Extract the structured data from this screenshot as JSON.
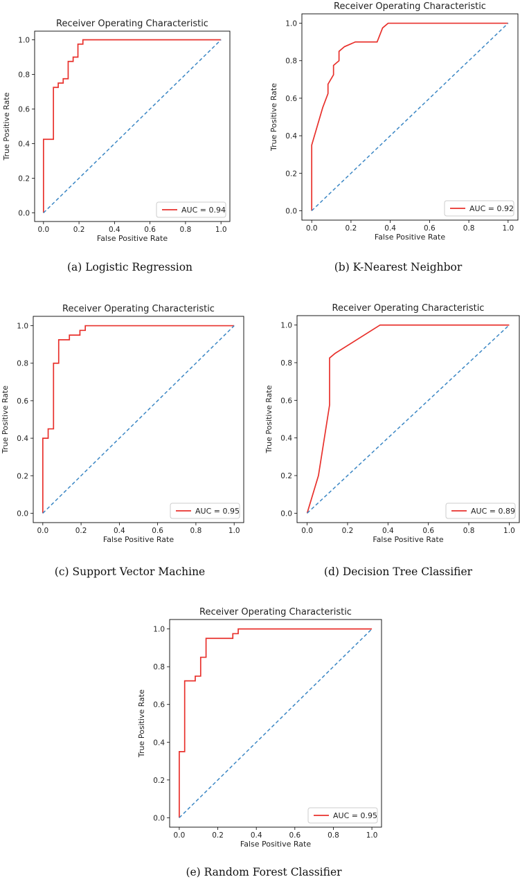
{
  "chart_data": [
    {
      "type": "line",
      "title": "Receiver Operating Characteristic",
      "xlabel": "False Positive Rate",
      "ylabel": "True Positive Rate",
      "xlim": [
        -0.05,
        1.05
      ],
      "ylim": [
        -0.05,
        1.05
      ],
      "xticks": [
        "0.0",
        "0.2",
        "0.4",
        "0.6",
        "0.8",
        "1.0"
      ],
      "yticks": [
        "0.0",
        "0.2",
        "0.4",
        "0.6",
        "0.8",
        "1.0"
      ],
      "legend_position": "lower-right",
      "series": [
        {
          "name": "AUC = 0.94",
          "color": "#e8302b",
          "style": "solid",
          "x": [
            0,
            0,
            0.056,
            0.056,
            0.083,
            0.083,
            0.111,
            0.111,
            0.139,
            0.139,
            0.167,
            0.167,
            0.194,
            0.194,
            0.222,
            0.222,
            1.0
          ],
          "y": [
            0,
            0.425,
            0.425,
            0.725,
            0.725,
            0.75,
            0.75,
            0.775,
            0.775,
            0.875,
            0.875,
            0.9,
            0.9,
            0.975,
            0.975,
            1.0,
            1.0
          ]
        },
        {
          "name": "",
          "color": "#3a86c4",
          "style": "dashed",
          "x": [
            0,
            1
          ],
          "y": [
            0,
            1
          ]
        }
      ],
      "caption": "(a) Logistic Regression"
    },
    {
      "type": "line",
      "title": "Receiver Operating Characteristic",
      "xlabel": "False Positive Rate",
      "ylabel": "True Positive Rate",
      "xlim": [
        -0.05,
        1.05
      ],
      "ylim": [
        -0.05,
        1.05
      ],
      "xticks": [
        "0.0",
        "0.2",
        "0.4",
        "0.6",
        "0.8",
        "1.0"
      ],
      "yticks": [
        "0.0",
        "0.2",
        "0.4",
        "0.6",
        "0.8",
        "1.0"
      ],
      "legend_position": "lower-right",
      "series": [
        {
          "name": "AUC = 0.92",
          "color": "#e8302b",
          "style": "solid",
          "x": [
            0,
            0,
            0.028,
            0.056,
            0.083,
            0.083,
            0.111,
            0.111,
            0.139,
            0.139,
            0.167,
            0.222,
            0.25,
            0.333,
            0.361,
            0.389,
            1.0
          ],
          "y": [
            0,
            0.35,
            0.45,
            0.55,
            0.625,
            0.675,
            0.725,
            0.775,
            0.8,
            0.85,
            0.875,
            0.9,
            0.9,
            0.9,
            0.975,
            1.0,
            1.0
          ]
        },
        {
          "name": "",
          "color": "#3a86c4",
          "style": "dashed",
          "x": [
            0,
            1
          ],
          "y": [
            0,
            1
          ]
        }
      ],
      "caption": "(b) K-Nearest Neighbor"
    },
    {
      "type": "line",
      "title": "Receiver Operating Characteristic",
      "xlabel": "False Positive Rate",
      "ylabel": "True Positive Rate",
      "xlim": [
        -0.05,
        1.05
      ],
      "ylim": [
        -0.05,
        1.05
      ],
      "xticks": [
        "0.0",
        "0.2",
        "0.4",
        "0.6",
        "0.8",
        "1.0"
      ],
      "yticks": [
        "0.0",
        "0.2",
        "0.4",
        "0.6",
        "0.8",
        "1.0"
      ],
      "legend_position": "lower-right",
      "series": [
        {
          "name": "AUC = 0.95",
          "color": "#e8302b",
          "style": "solid",
          "x": [
            0,
            0,
            0.028,
            0.028,
            0.056,
            0.056,
            0.083,
            0.083,
            0.139,
            0.139,
            0.194,
            0.194,
            0.222,
            0.222,
            1.0
          ],
          "y": [
            0,
            0.4,
            0.4,
            0.45,
            0.45,
            0.8,
            0.8,
            0.925,
            0.925,
            0.95,
            0.95,
            0.975,
            0.975,
            1.0,
            1.0
          ]
        },
        {
          "name": "",
          "color": "#3a86c4",
          "style": "dashed",
          "x": [
            0,
            1
          ],
          "y": [
            0,
            1
          ]
        }
      ],
      "caption": "(c) Support Vector Machine"
    },
    {
      "type": "line",
      "title": "Receiver Operating Characteristic",
      "xlabel": "False Positive Rate",
      "ylabel": "True Positive Rate",
      "xlim": [
        -0.05,
        1.05
      ],
      "ylim": [
        -0.05,
        1.05
      ],
      "xticks": [
        "0.0",
        "0.2",
        "0.4",
        "0.6",
        "0.8",
        "1.0"
      ],
      "yticks": [
        "0.0",
        "0.2",
        "0.4",
        "0.6",
        "0.8",
        "1.0"
      ],
      "legend_position": "lower-right",
      "series": [
        {
          "name": "AUC = 0.89",
          "color": "#e8302b",
          "style": "solid",
          "x": [
            0,
            0.056,
            0.111,
            0.111,
            0.139,
            0.361,
            1.0
          ],
          "y": [
            0,
            0.2,
            0.575,
            0.825,
            0.85,
            1.0,
            1.0
          ]
        },
        {
          "name": "",
          "color": "#3a86c4",
          "style": "dashed",
          "x": [
            0,
            1
          ],
          "y": [
            0,
            1
          ]
        }
      ],
      "caption": "(d) Decision Tree Classifier"
    },
    {
      "type": "line",
      "title": "Receiver Operating Characteristic",
      "xlabel": "False Positive Rate",
      "ylabel": "True Positive Rate",
      "xlim": [
        -0.05,
        1.05
      ],
      "ylim": [
        -0.05,
        1.05
      ],
      "xticks": [
        "0.0",
        "0.2",
        "0.4",
        "0.6",
        "0.8",
        "1.0"
      ],
      "yticks": [
        "0.0",
        "0.2",
        "0.4",
        "0.6",
        "0.8",
        "1.0"
      ],
      "legend_position": "lower-right",
      "series": [
        {
          "name": "AUC = 0.95",
          "color": "#e8302b",
          "style": "solid",
          "x": [
            0,
            0,
            0.028,
            0.028,
            0.083,
            0.083,
            0.111,
            0.111,
            0.139,
            0.139,
            0.278,
            0.278,
            0.306,
            0.306,
            1.0
          ],
          "y": [
            0,
            0.35,
            0.35,
            0.725,
            0.725,
            0.75,
            0.75,
            0.85,
            0.85,
            0.95,
            0.95,
            0.975,
            0.975,
            1.0,
            1.0
          ]
        },
        {
          "name": "",
          "color": "#3a86c4",
          "style": "dashed",
          "x": [
            0,
            1
          ],
          "y": [
            0,
            1
          ]
        }
      ],
      "caption": "(e) Random Forest Classifier"
    }
  ]
}
